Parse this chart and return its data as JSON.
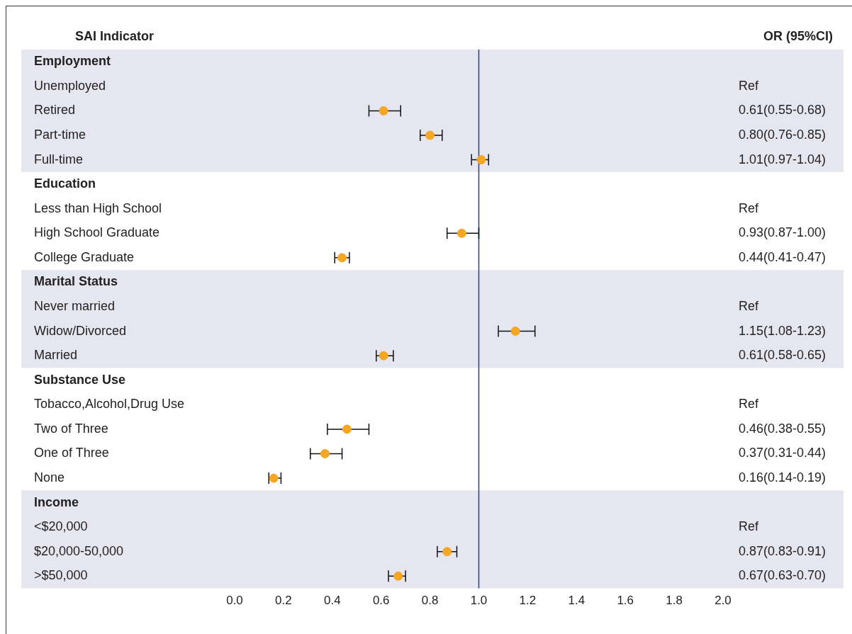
{
  "chart_data": {
    "type": "scatter",
    "orientation": "horizontal",
    "ylabel": "SAI Indicator",
    "y2label": "OR (95%CI)",
    "categories": [
      "Employment",
      "Unemployed",
      "Retired",
      "Part-time",
      "Full-time",
      "Education",
      "Less than High School",
      "High School Graduate",
      "College Graduate",
      "Marital Status",
      "Never married",
      "Widow/Divorced",
      "Married",
      "Substance Use",
      "Tobacco,Alcohol,Drug Use",
      "Two of Three",
      "One of Three",
      "None",
      "Income",
      "<$20,000",
      "$20,000-50,000",
      ">$50,000"
    ],
    "values": [
      null,
      null,
      0.61,
      0.8,
      1.01,
      null,
      null,
      0.93,
      0.44,
      null,
      null,
      1.15,
      0.61,
      null,
      null,
      0.46,
      0.37,
      0.16,
      null,
      null,
      0.87,
      0.67
    ],
    "errors": [
      null,
      null,
      [
        0.55,
        0.68
      ],
      [
        0.76,
        0.85
      ],
      [
        0.97,
        1.04
      ],
      null,
      null,
      [
        0.87,
        1.0
      ],
      [
        0.41,
        0.47
      ],
      null,
      null,
      [
        1.08,
        1.23
      ],
      [
        0.58,
        0.65
      ],
      null,
      null,
      [
        0.38,
        0.55
      ],
      [
        0.31,
        0.44
      ],
      [
        0.14,
        0.19
      ],
      null,
      null,
      [
        0.83,
        0.91
      ],
      [
        0.63,
        0.7
      ]
    ],
    "value_labels": [
      null,
      "Ref",
      "0.61(0.55-0.68)",
      "0.80(0.76-0.85)",
      "1.01(0.97-1.04)",
      null,
      "Ref",
      "0.93(0.87-1.00)",
      "0.44(0.41-0.47)",
      null,
      "Ref",
      "1.15(1.08-1.23)",
      "0.61(0.58-0.65)",
      null,
      "Ref",
      "0.46(0.38-0.55)",
      "0.37(0.31-0.44)",
      "0.16(0.14-0.19)",
      null,
      "Ref",
      "0.87(0.83-0.91)",
      "0.67(0.63-0.70)"
    ],
    "color": "#f5a623",
    "marker": "circle",
    "xlim": [
      0,
      2
    ],
    "xticks": [
      {
        "value": 0,
        "label": "0.0"
      },
      {
        "value": 0.2,
        "label": "0.2"
      },
      {
        "value": 0.4,
        "label": "0.4"
      },
      {
        "value": 0.6,
        "label": "0.6"
      },
      {
        "value": 0.8,
        "label": "0.8"
      },
      {
        "value": 1,
        "label": "1.0"
      },
      {
        "value": 1.2,
        "label": "1.2"
      },
      {
        "value": 1.4,
        "label": "1.4"
      },
      {
        "value": 1.6,
        "label": "1.6"
      },
      {
        "value": 1.8,
        "label": "1.8"
      },
      {
        "value": 2,
        "label": "2.0"
      }
    ],
    "ref_lines": [
      {
        "axis": "x",
        "value": 1,
        "color": "#2b3f9e"
      }
    ],
    "bands": [
      {
        "axis": "y",
        "from": "Employment",
        "to": "Full-time",
        "color": "#e6e6f0"
      },
      {
        "axis": "y",
        "from": "Marital Status",
        "to": "Married",
        "color": "#e6e6f0"
      },
      {
        "axis": "y",
        "from": "Income",
        "to": ">$50,000",
        "color": "#e6e6f0"
      }
    ],
    "grid": false,
    "legend": false
  }
}
